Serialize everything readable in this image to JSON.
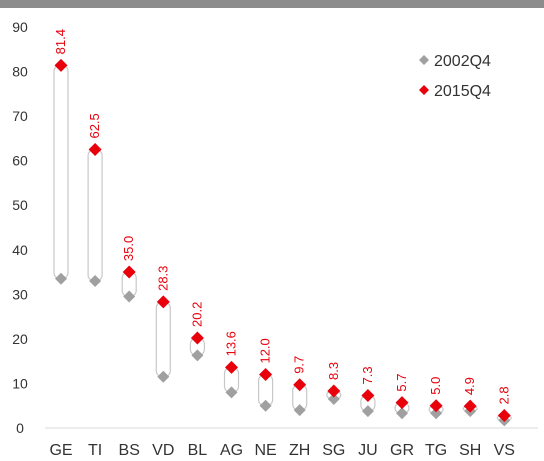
{
  "chart_data": {
    "type": "scatter",
    "categories": [
      "GE",
      "TI",
      "BS",
      "VD",
      "BL",
      "AG",
      "NE",
      "ZH",
      "SG",
      "JU",
      "GR",
      "TG",
      "SH",
      "VS"
    ],
    "series": [
      {
        "name": "2002Q4",
        "values": [
          33.5,
          33.0,
          29.5,
          11.5,
          16.3,
          8.0,
          5.0,
          4.0,
          6.5,
          3.8,
          3.3,
          3.3,
          3.8,
          1.7
        ],
        "marker": "diamond",
        "color": "#a0a0a0"
      },
      {
        "name": "2015Q4",
        "values": [
          81.4,
          62.5,
          35.0,
          28.3,
          20.2,
          13.6,
          12.0,
          9.7,
          8.3,
          7.3,
          5.7,
          5.0,
          4.9,
          2.8
        ],
        "marker": "diamond",
        "color": "#e8000b"
      }
    ],
    "data_labels": [
      "81.4",
      "62.5",
      "35.0",
      "28.3",
      "20.2",
      "13.6",
      "12.0",
      "9.7",
      "8.3",
      "7.3",
      "5.7",
      "5.0",
      "4.9",
      "2.8"
    ],
    "y_ticks": [
      "0",
      "10",
      "20",
      "30",
      "40",
      "50",
      "60",
      "70",
      "80",
      "90"
    ],
    "ylim": [
      0,
      90
    ],
    "legend_position": "top-right",
    "range_bars": true,
    "grid": false
  }
}
